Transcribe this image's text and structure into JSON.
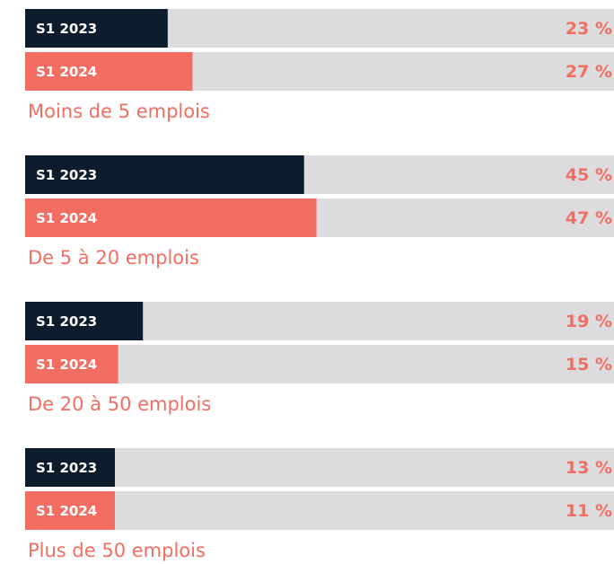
{
  "chart_data": {
    "type": "hbar_grouped",
    "categories": [
      "Moins de 5 emplois",
      "De 5 à 20 emplois",
      "De 20 à 50 emplois",
      "Plus de 50 emplois"
    ],
    "series": [
      {
        "name": "S1 2023",
        "color": "#0c1c2c",
        "values": [
          23,
          45,
          19,
          13
        ],
        "value_labels": [
          "23 %",
          "45 %",
          "19 %",
          "13 %"
        ]
      },
      {
        "name": "S1 2024",
        "color": "#f26e63",
        "values": [
          27,
          47,
          15,
          11
        ],
        "value_labels": [
          "27 %",
          "47 %",
          "15 %",
          "11 %"
        ]
      }
    ],
    "xlim": [
      0,
      95
    ],
    "track_color": "#dcdcdf"
  }
}
